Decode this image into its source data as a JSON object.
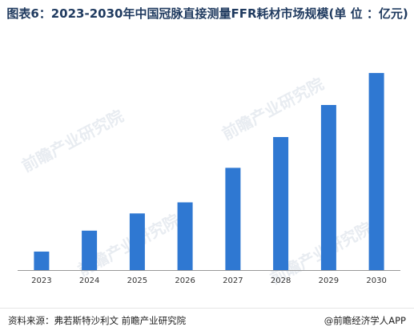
{
  "title": "图表6：2023-2030年中国冠脉直接测量FFR耗材市场规模(单 位 ：亿元)",
  "watermark": "前瞻产业研究院",
  "source": "资料来源：弗若斯特沙利文 前瞻产业研究院",
  "brand": "@前瞻经济学人APP",
  "colors": {
    "bar": "#2f78d2",
    "axis": "#999999",
    "title": "#1f3a5f"
  },
  "chart_data": {
    "type": "bar",
    "title": "图表6：2023-2030年中国冠脉直接测量FFR耗材市场规模(单 位 ：亿元)",
    "xlabel": "",
    "ylabel": "",
    "categories": [
      "2023",
      "2024",
      "2025",
      "2026",
      "2027",
      "2028",
      "2029",
      "2030"
    ],
    "values": [
      1.5,
      3.2,
      4.6,
      5.5,
      8.3,
      10.8,
      13.4,
      16.0
    ],
    "ylim": [
      0,
      17.5
    ],
    "grid": false,
    "legend": "none"
  }
}
